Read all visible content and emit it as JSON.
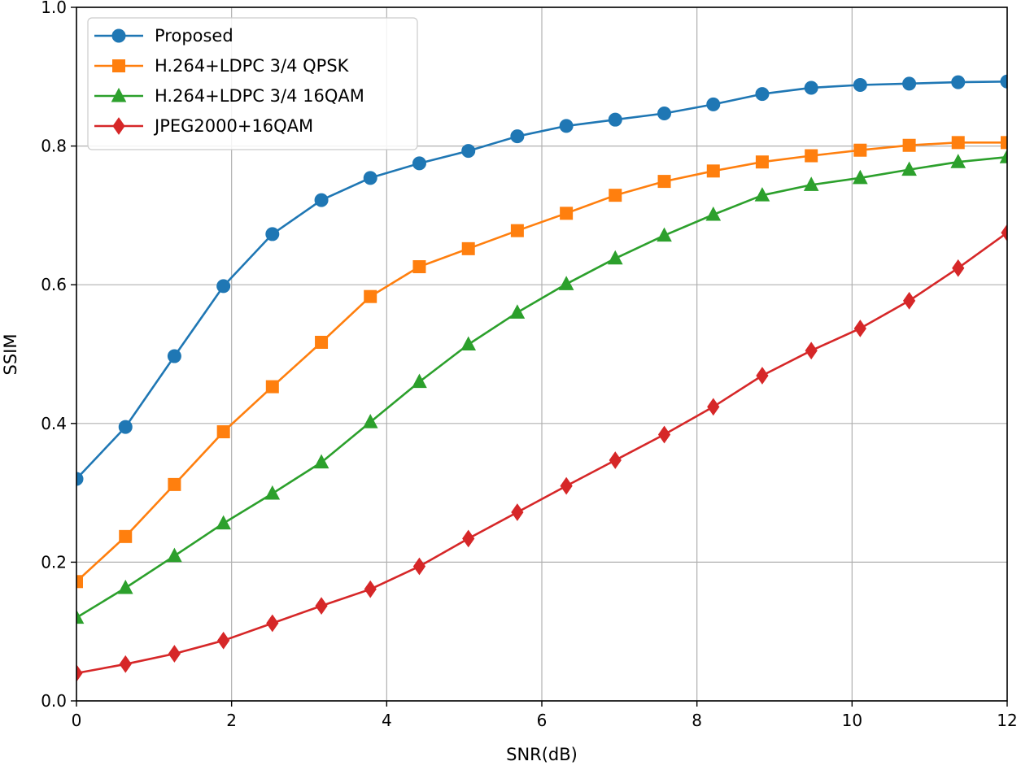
{
  "chart_data": {
    "type": "line",
    "title": "",
    "xlabel": "SNR(dB)",
    "ylabel": "SSIM",
    "xlim": [
      0,
      12
    ],
    "ylim": [
      0,
      1.0
    ],
    "grid": true,
    "legend_position": "top-left",
    "xticks": [
      0,
      2,
      4,
      6,
      8,
      10,
      12
    ],
    "xtick_labels": [
      "0",
      "2",
      "4",
      "6",
      "8",
      "10",
      "12"
    ],
    "yticks": [
      0,
      0.2,
      0.4,
      0.6,
      0.8,
      1.0
    ],
    "ytick_labels": [
      "0.0",
      "0.2",
      "0.4",
      "0.6",
      "0.8",
      "1.0"
    ],
    "x": [
      0,
      0.632,
      1.263,
      1.895,
      2.526,
      3.158,
      3.789,
      4.421,
      5.053,
      5.684,
      6.316,
      6.947,
      7.579,
      8.211,
      8.842,
      9.474,
      10.105,
      10.737,
      11.368,
      12.0
    ],
    "series": [
      {
        "name": "Proposed",
        "color": "#1f77b4",
        "marker": "circle",
        "values": [
          0.32,
          0.395,
          0.497,
          0.598,
          0.673,
          0.722,
          0.754,
          0.775,
          0.793,
          0.814,
          0.829,
          0.838,
          0.847,
          0.86,
          0.875,
          0.884,
          0.888,
          0.89,
          0.892,
          0.893
        ]
      },
      {
        "name": "H.264+LDPC 3/4 QPSK",
        "color": "#ff7f0e",
        "marker": "square",
        "values": [
          0.172,
          0.237,
          0.312,
          0.388,
          0.453,
          0.517,
          0.583,
          0.626,
          0.652,
          0.678,
          0.703,
          0.729,
          0.749,
          0.764,
          0.777,
          0.786,
          0.794,
          0.801,
          0.805,
          0.805
        ]
      },
      {
        "name": "H.264+LDPC 3/4 16QAM",
        "color": "#2ca02c",
        "marker": "triangle",
        "values": [
          0.12,
          0.163,
          0.209,
          0.256,
          0.299,
          0.344,
          0.402,
          0.46,
          0.514,
          0.56,
          0.601,
          0.638,
          0.671,
          0.701,
          0.729,
          0.744,
          0.754,
          0.766,
          0.777,
          0.784
        ]
      },
      {
        "name": "JPEG2000+16QAM",
        "color": "#d62728",
        "marker": "diamond",
        "values": [
          0.04,
          0.053,
          0.068,
          0.087,
          0.112,
          0.137,
          0.161,
          0.194,
          0.234,
          0.272,
          0.31,
          0.347,
          0.384,
          0.424,
          0.469,
          0.505,
          0.537,
          0.577,
          0.624,
          0.675
        ]
      }
    ]
  }
}
